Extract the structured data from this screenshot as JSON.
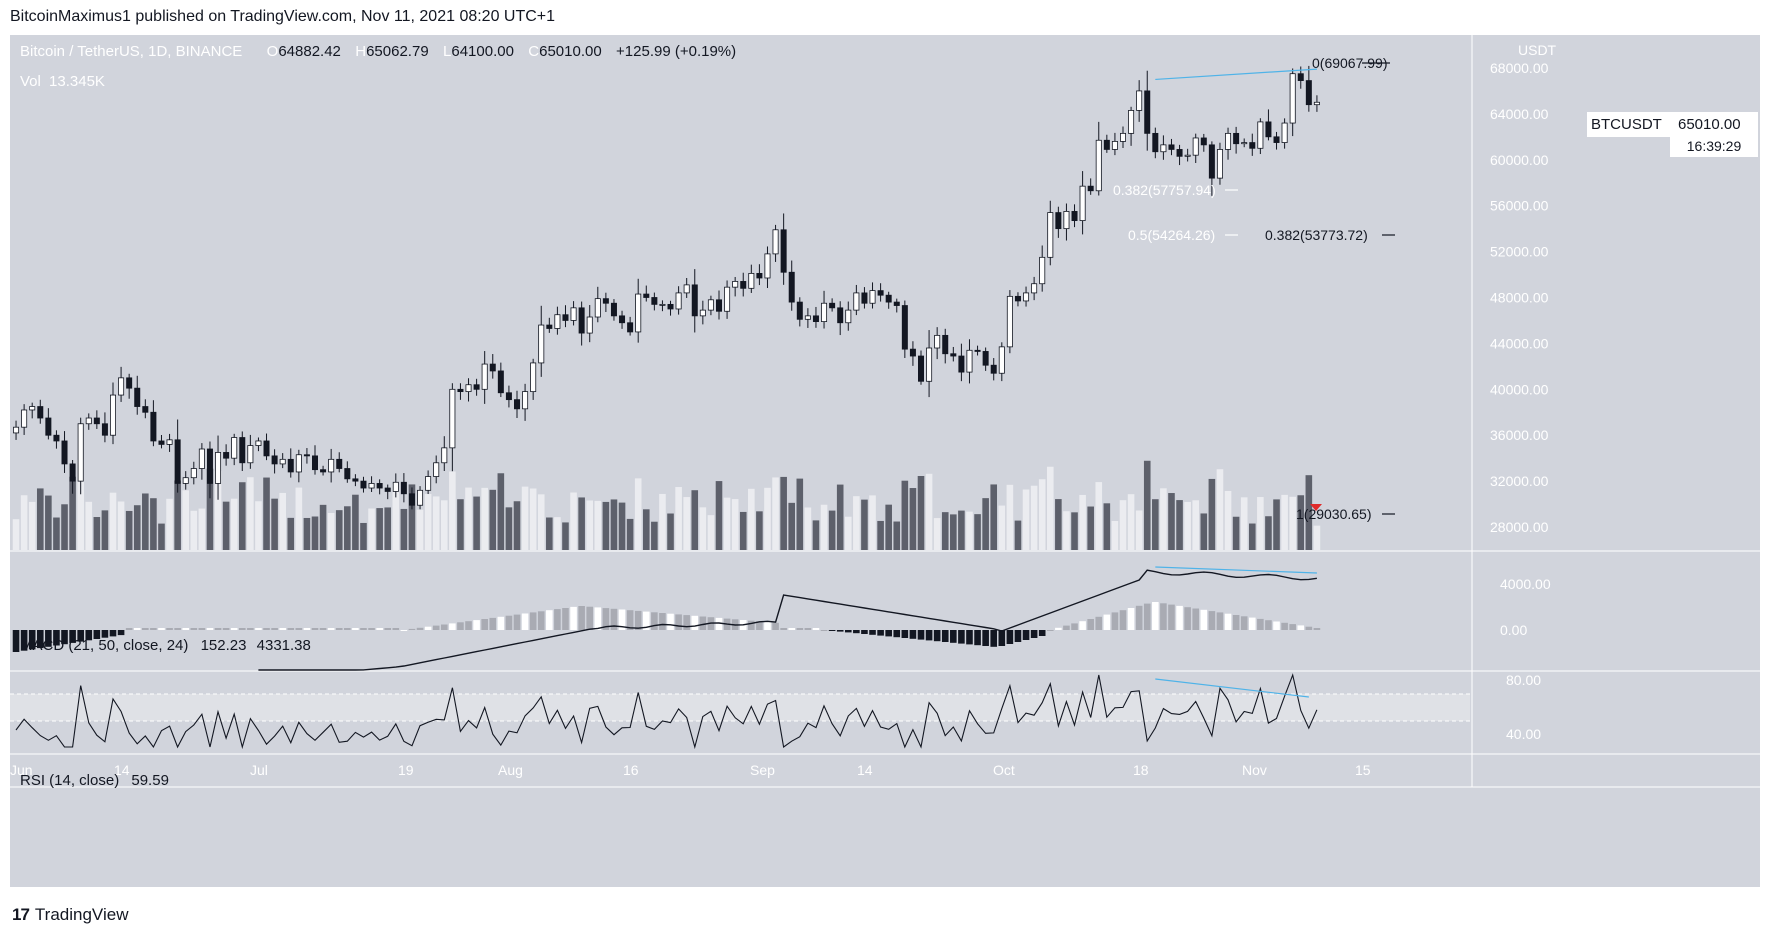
{
  "publisher_line": "BitcoinMaximus1 published on TradingView.com, Nov 11, 2021 08:20 UTC+1",
  "brand": {
    "logo": "17",
    "name": "TradingView"
  },
  "header": {
    "symbol_line": "Bitcoin / TetherUS, 1D, BINANCE",
    "o_label": "O",
    "o_value": "64882.42",
    "h_label": "H",
    "h_value": "65062.79",
    "l_label": "L",
    "l_value": "64100.00",
    "c_label": "C",
    "c_value": "65010.00",
    "change": "+125.99 (+0.19%)",
    "vol_label": "Vol",
    "vol_value": "13.345K"
  },
  "price_axis": {
    "currency": "USDT",
    "ticks": [
      "68000.00",
      "64000.00",
      "60000.00",
      "56000.00",
      "52000.00",
      "48000.00",
      "44000.00",
      "40000.00",
      "36000.00",
      "32000.00",
      "28000.00"
    ]
  },
  "price_tag": {
    "symbol": "BTCUSDT",
    "price": "65010.00",
    "countdown": "16:39:29"
  },
  "fib_labels": {
    "top": "0(69067.99)",
    "f382a": "0.382(57757.94)",
    "f5": "0.5(54264.26)",
    "f382b": "0.382(53773.72)",
    "bottom": "1(29030.65)"
  },
  "macd": {
    "label": "MACD (21, 50, close, 24)",
    "v1": "152.23",
    "v2": "4331.38",
    "ticks": [
      "4000.00",
      "0.00"
    ]
  },
  "rsi": {
    "label": "RSI (14, close)",
    "value": "59.59",
    "ticks": [
      "80.00",
      "40.00"
    ]
  },
  "time_axis": {
    "labels": [
      "Jun",
      "14",
      "Jul",
      "19",
      "Aug",
      "16",
      "Sep",
      "14",
      "Oct",
      "18",
      "Nov",
      "15"
    ]
  },
  "colors": {
    "background": "#d1d4dc",
    "up": "#ffffff",
    "down": "#131722",
    "trendline": "#4fb3e8",
    "vol_up": "#ebecf0",
    "vol_down": "#5d606b",
    "hist_pos": "#a9abb3"
  },
  "chart_data": {
    "type": "candlestick",
    "symbol": "Bitcoin / TetherUS, 1D, BINANCE",
    "x_start": "2021-06-01",
    "x_end": "2021-11-11",
    "price_range": [
      26000,
      70000
    ],
    "price_closes": [
      36700,
      38200,
      38500,
      37500,
      36000,
      35500,
      33500,
      32000,
      37000,
      37500,
      37000,
      36000,
      39500,
      41000,
      40100,
      38500,
      38000,
      35500,
      35200,
      35600,
      31800,
      32300,
      33100,
      34800,
      31800,
      34500,
      34000,
      35800,
      33600,
      35100,
      35500,
      34200,
      33500,
      33900,
      32800,
      34300,
      34200,
      33000,
      32800,
      33900,
      33100,
      32200,
      32000,
      31400,
      31800,
      31400,
      31100,
      31900,
      30900,
      29900,
      31200,
      32400,
      33600,
      34900,
      40000,
      39800,
      40400,
      40000,
      42200,
      41600,
      39700,
      39100,
      38300,
      39800,
      42300,
      45600,
      45300,
      46500,
      46000,
      47100,
      44900,
      46300,
      47900,
      47500,
      46400,
      45800,
      45000,
      48300,
      48000,
      47400,
      47400,
      47000,
      48400,
      49100,
      46400,
      46900,
      47800,
      46800,
      48900,
      49400,
      48800,
      50100,
      49700,
      51800,
      53900,
      50200,
      47600,
      46100,
      46400,
      45900,
      47500,
      47100,
      45800,
      46900,
      48400,
      47500,
      48600,
      48200,
      47600,
      47300,
      43500,
      42900,
      40700,
      43600,
      44700,
      43100,
      42900,
      41500,
      43400,
      43300,
      42100,
      41400,
      43700,
      48100,
      47700,
      48400,
      49200,
      51500,
      55400,
      54000,
      55500,
      54700,
      57700,
      57300,
      61700,
      60900,
      61600,
      62300,
      64300,
      66000,
      62300,
      60700,
      61300,
      60900,
      60300,
      60400,
      61900,
      61300,
      58400,
      60900,
      62300,
      61400,
      61500,
      61000,
      63300,
      62000,
      61500,
      63200,
      67500,
      66900,
      64800,
      65010
    ],
    "annotations": {
      "fib_levels": [
        {
          "label": "0",
          "value": 69067.99
        },
        {
          "label": "0.382",
          "value": 57757.94
        },
        {
          "label": "0.5",
          "value": 54264.26
        },
        {
          "label": "0.382",
          "value": 53773.72
        },
        {
          "label": "1",
          "value": 29030.65
        }
      ],
      "bearish_divergence": "price higher high vs MACD/RSI lower high (Oct 20 to Nov 10)"
    },
    "indicators": {
      "macd": {
        "params": "21, 50, close, 24",
        "macd_line": 152.23,
        "signal": 4331.38
      },
      "rsi": {
        "params": "14, close",
        "value": 59.59
      }
    }
  }
}
